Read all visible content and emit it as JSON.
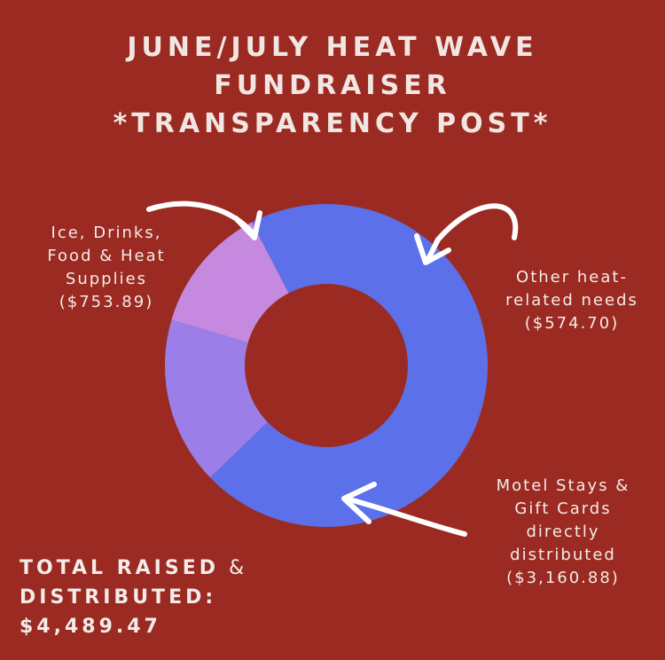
{
  "title_lines": [
    "JUNE/JULY HEAT WAVE",
    "FUNDRAISER",
    "*TRANSPARENCY POST*"
  ],
  "colors": {
    "background": "#9b2a22",
    "ice": "#9b7ee8",
    "other": "#c58ae0",
    "motel": "#5c70ea",
    "text": "#f3ece8",
    "arrow": "#ffffff"
  },
  "chart_data": {
    "type": "pie",
    "donut": true,
    "slices": [
      {
        "name": "Ice, Drinks, Food & Heat Supplies",
        "value": 753.89
      },
      {
        "name": "Other heat-related needs",
        "value": 574.7
      },
      {
        "name": "Motel Stays & Gift Cards directly distributed",
        "value": 3160.88
      }
    ]
  },
  "labels": {
    "ice": [
      "Ice, Drinks,",
      "Food & Heat",
      "Supplies",
      "($753.89)"
    ],
    "other": [
      "Other heat-",
      "related needs",
      "($574.70)"
    ],
    "motel": [
      "Motel Stays &",
      "Gift Cards",
      "directly",
      "distributed",
      "($3,160.88)"
    ]
  },
  "total": {
    "line1_bold": "TOTAL RAISED",
    "line1_rest": " &",
    "line2": "DISTRIBUTED:",
    "line3": "$4,489.47"
  }
}
